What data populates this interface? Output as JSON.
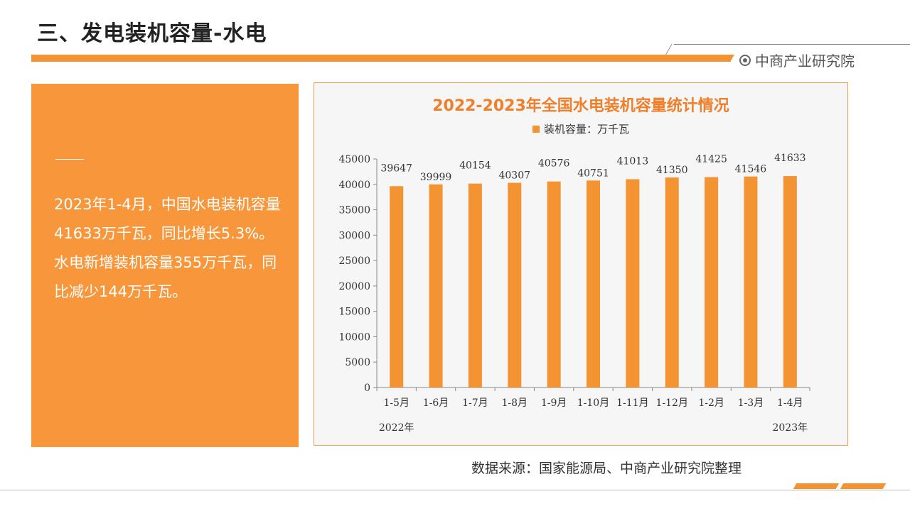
{
  "slide": {
    "title": "三、发电装机容量-水电",
    "brand": "中商产业研究院",
    "source": "数据来源：国家能源局、中商产业研究院整理"
  },
  "summary": {
    "text": "2023年1-4月，中国水电装机容量41633万千瓦，同比增长5.3%。水电新增装机容量355万千瓦，同比减少144万千瓦。"
  },
  "colors": {
    "accent": "#f39331",
    "chart_title": "#ef7f2a",
    "panel": "#f7963b"
  },
  "chart_data": {
    "type": "bar",
    "title": "2022-2023年全国水电装机容量统计情况",
    "legend_position": "top-center",
    "categories": [
      "1-5月",
      "1-6月",
      "1-7月",
      "1-8月",
      "1-9月",
      "1-10月",
      "1-11月",
      "1-12月",
      "1-2月",
      "1-3月",
      "1-4月"
    ],
    "series": [
      {
        "name": "装机容量：万千瓦",
        "values": [
          39647,
          39999,
          40154,
          40307,
          40576,
          40751,
          41013,
          41350,
          41425,
          41546,
          41633
        ]
      }
    ],
    "year_labels": [
      {
        "label": "2022年",
        "category_index": 0
      },
      {
        "label": "2023年",
        "category_index": 10
      }
    ],
    "ylim": [
      0,
      45000
    ],
    "yticks": [
      0,
      5000,
      10000,
      15000,
      20000,
      25000,
      30000,
      35000,
      40000,
      45000
    ],
    "grid": false,
    "xlabel": "",
    "ylabel": ""
  }
}
